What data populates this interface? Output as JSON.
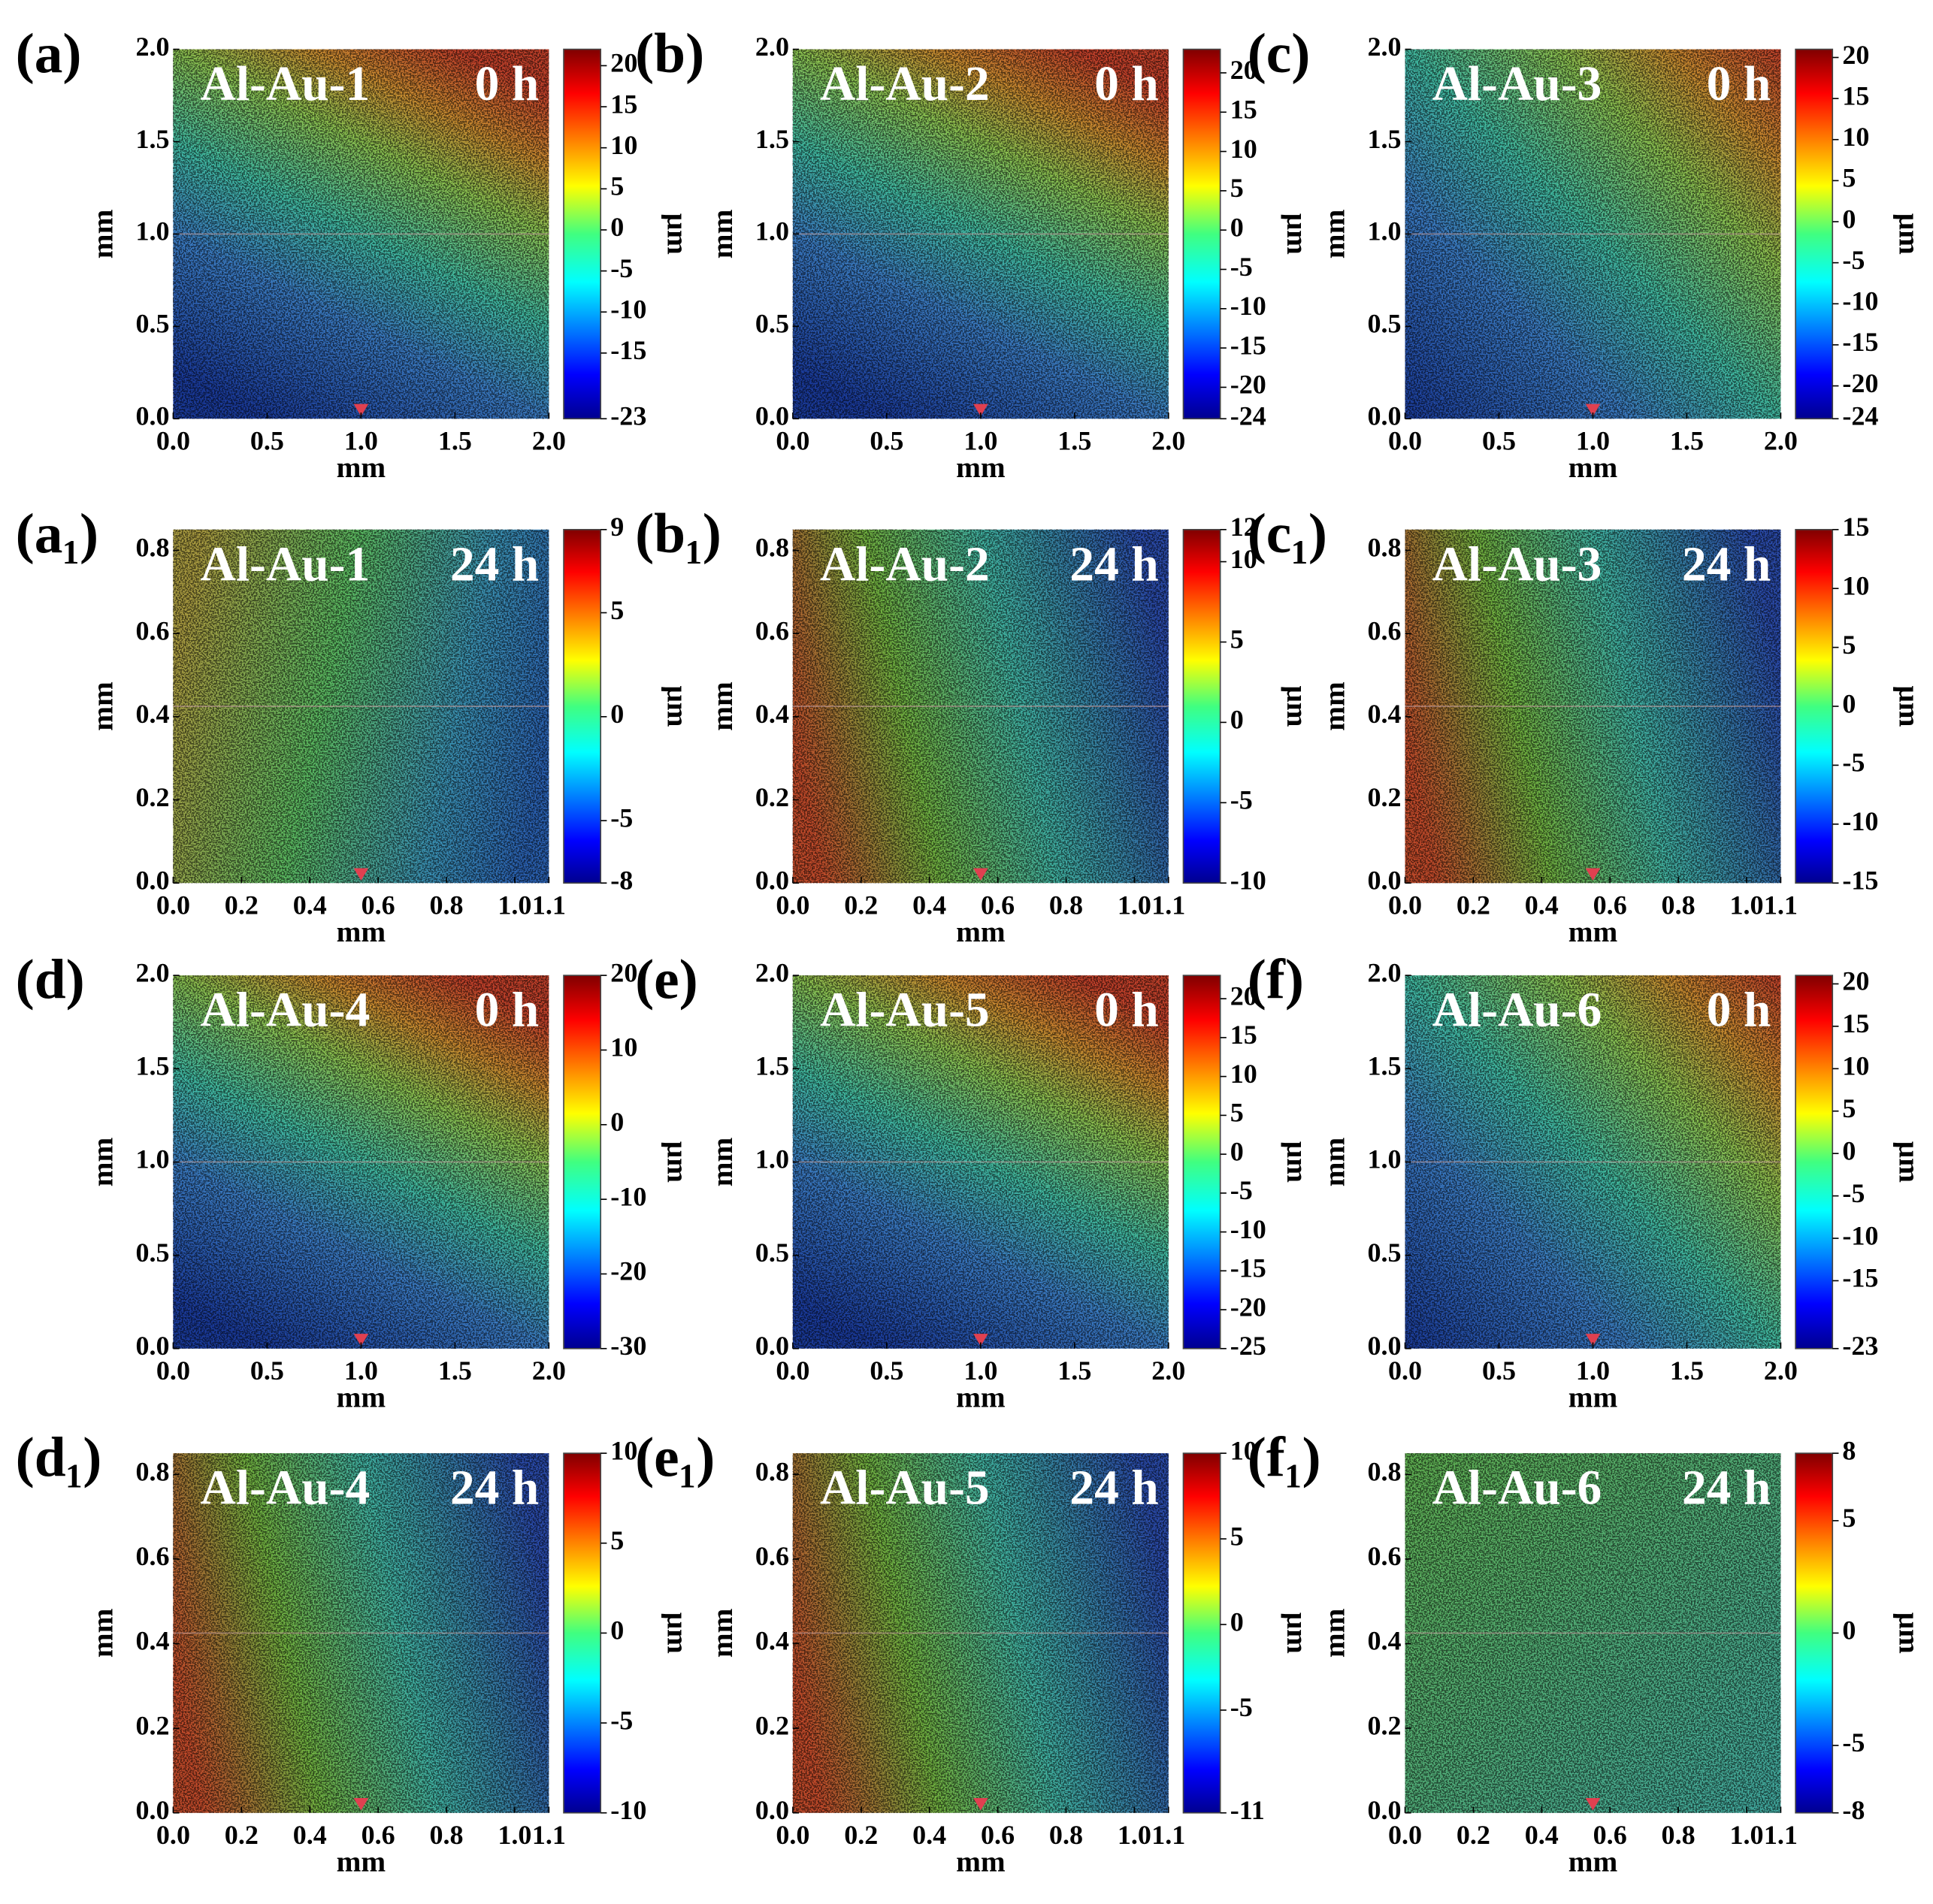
{
  "chart_data": [
    {
      "type": "heatmap",
      "panel_label": "(a)",
      "title": "Al-Au-1",
      "time": "0 h",
      "xlabel": "mm",
      "ylabel": "mm",
      "colorbar_label": "μm",
      "xlim": [
        0,
        2
      ],
      "ylim": [
        0,
        2
      ],
      "xticks": [
        {
          "value": 0,
          "label": "0.0"
        },
        {
          "value": 0.5,
          "label": "0.5"
        },
        {
          "value": 1,
          "label": "1.0"
        },
        {
          "value": 1.5,
          "label": "1.5"
        },
        {
          "value": 2,
          "label": "2.0"
        }
      ],
      "yticks": [
        {
          "value": 0,
          "label": "0.0"
        },
        {
          "value": 0.5,
          "label": "0.5"
        },
        {
          "value": 1,
          "label": "1.0"
        },
        {
          "value": 1.5,
          "label": "1.5"
        },
        {
          "value": 2,
          "label": "2.0"
        }
      ],
      "clim": [
        -23,
        22
      ],
      "cticks": [
        20,
        15,
        10,
        5,
        0,
        -5,
        -10,
        -15,
        -23
      ]
    },
    {
      "type": "heatmap",
      "panel_label": "(b)",
      "title": "Al-Au-2",
      "time": "0 h",
      "xlabel": "mm",
      "ylabel": "mm",
      "colorbar_label": "μm",
      "xlim": [
        0,
        2
      ],
      "ylim": [
        0,
        2
      ],
      "xticks": [
        {
          "value": 0,
          "label": "0.0"
        },
        {
          "value": 0.5,
          "label": "0.5"
        },
        {
          "value": 1,
          "label": "1.0"
        },
        {
          "value": 1.5,
          "label": "1.5"
        },
        {
          "value": 2,
          "label": "2.0"
        }
      ],
      "yticks": [
        {
          "value": 0,
          "label": "0.0"
        },
        {
          "value": 0.5,
          "label": "0.5"
        },
        {
          "value": 1,
          "label": "1.0"
        },
        {
          "value": 1.5,
          "label": "1.5"
        },
        {
          "value": 2,
          "label": "2.0"
        }
      ],
      "clim": [
        -24,
        23
      ],
      "cticks": [
        20,
        15,
        10,
        5,
        0,
        -5,
        -10,
        -15,
        -20,
        -24
      ]
    },
    {
      "type": "heatmap",
      "panel_label": "(c)",
      "title": "Al-Au-3",
      "time": "0 h",
      "xlabel": "mm",
      "ylabel": "mm",
      "colorbar_label": "μm",
      "xlim": [
        0,
        2
      ],
      "ylim": [
        0,
        2
      ],
      "xticks": [
        {
          "value": 0,
          "label": "0.0"
        },
        {
          "value": 0.5,
          "label": "0.5"
        },
        {
          "value": 1,
          "label": "1.0"
        },
        {
          "value": 1.5,
          "label": "1.5"
        },
        {
          "value": 2,
          "label": "2.0"
        }
      ],
      "yticks": [
        {
          "value": 0,
          "label": "0.0"
        },
        {
          "value": 0.5,
          "label": "0.5"
        },
        {
          "value": 1,
          "label": "1.0"
        },
        {
          "value": 1.5,
          "label": "1.5"
        },
        {
          "value": 2,
          "label": "2.0"
        }
      ],
      "clim": [
        -24,
        21
      ],
      "cticks": [
        20,
        15,
        10,
        5,
        0,
        -5,
        -10,
        -15,
        -20,
        -24
      ]
    },
    {
      "type": "heatmap",
      "panel_label": "(a₁)",
      "title": "Al-Au-1",
      "time": "24 h",
      "xlabel": "mm",
      "ylabel": "mm",
      "colorbar_label": "μm",
      "xlim": [
        0,
        1.1
      ],
      "ylim": [
        0,
        0.85
      ],
      "xticks": [
        {
          "value": 0,
          "label": "0.0"
        },
        {
          "value": 0.2,
          "label": "0.2"
        },
        {
          "value": 0.4,
          "label": "0.4"
        },
        {
          "value": 0.6,
          "label": "0.6"
        },
        {
          "value": 0.8,
          "label": "0.8"
        },
        {
          "value": 1,
          "label": "1.0"
        },
        {
          "value": 1.1,
          "label": "1.1"
        }
      ],
      "yticks": [
        {
          "value": 0,
          "label": "0.0"
        },
        {
          "value": 0.2,
          "label": "0.2"
        },
        {
          "value": 0.4,
          "label": "0.4"
        },
        {
          "value": 0.6,
          "label": "0.6"
        },
        {
          "value": 0.8,
          "label": "0.8"
        }
      ],
      "clim": [
        -8,
        9
      ],
      "cticks": [
        9,
        5,
        0,
        -5,
        -8
      ]
    },
    {
      "type": "heatmap",
      "panel_label": "(b₁)",
      "title": "Al-Au-2",
      "time": "24 h",
      "xlabel": "mm",
      "ylabel": "mm",
      "colorbar_label": "μm",
      "xlim": [
        0,
        1.1
      ],
      "ylim": [
        0,
        0.85
      ],
      "xticks": [
        {
          "value": 0,
          "label": "0.0"
        },
        {
          "value": 0.2,
          "label": "0.2"
        },
        {
          "value": 0.4,
          "label": "0.4"
        },
        {
          "value": 0.6,
          "label": "0.6"
        },
        {
          "value": 0.8,
          "label": "0.8"
        },
        {
          "value": 1,
          "label": "1.0"
        },
        {
          "value": 1.1,
          "label": "1.1"
        }
      ],
      "yticks": [
        {
          "value": 0,
          "label": "0.0"
        },
        {
          "value": 0.2,
          "label": "0.2"
        },
        {
          "value": 0.4,
          "label": "0.4"
        },
        {
          "value": 0.6,
          "label": "0.6"
        },
        {
          "value": 0.8,
          "label": "0.8"
        }
      ],
      "clim": [
        -10,
        12
      ],
      "cticks": [
        12,
        10,
        5,
        0,
        -5,
        -10
      ]
    },
    {
      "type": "heatmap",
      "panel_label": "(c₁)",
      "title": "Al-Au-3",
      "time": "24 h",
      "xlabel": "mm",
      "ylabel": "mm",
      "colorbar_label": "μm",
      "xlim": [
        0,
        1.1
      ],
      "ylim": [
        0,
        0.85
      ],
      "xticks": [
        {
          "value": 0,
          "label": "0.0"
        },
        {
          "value": 0.2,
          "label": "0.2"
        },
        {
          "value": 0.4,
          "label": "0.4"
        },
        {
          "value": 0.6,
          "label": "0.6"
        },
        {
          "value": 0.8,
          "label": "0.8"
        },
        {
          "value": 1,
          "label": "1.0"
        },
        {
          "value": 1.1,
          "label": "1.1"
        }
      ],
      "yticks": [
        {
          "value": 0,
          "label": "0.0"
        },
        {
          "value": 0.2,
          "label": "0.2"
        },
        {
          "value": 0.4,
          "label": "0.4"
        },
        {
          "value": 0.6,
          "label": "0.6"
        },
        {
          "value": 0.8,
          "label": "0.8"
        }
      ],
      "clim": [
        -15,
        15
      ],
      "cticks": [
        15,
        10,
        5,
        0,
        -5,
        -10,
        -15
      ]
    },
    {
      "type": "heatmap",
      "panel_label": "(d)",
      "title": "Al-Au-4",
      "time": "0 h",
      "xlabel": "mm",
      "ylabel": "mm",
      "colorbar_label": "μm",
      "xlim": [
        0,
        2
      ],
      "ylim": [
        0,
        2
      ],
      "xticks": [
        {
          "value": 0,
          "label": "0.0"
        },
        {
          "value": 0.5,
          "label": "0.5"
        },
        {
          "value": 1,
          "label": "1.0"
        },
        {
          "value": 1.5,
          "label": "1.5"
        },
        {
          "value": 2,
          "label": "2.0"
        }
      ],
      "yticks": [
        {
          "value": 0,
          "label": "0.0"
        },
        {
          "value": 0.5,
          "label": "0.5"
        },
        {
          "value": 1,
          "label": "1.0"
        },
        {
          "value": 1.5,
          "label": "1.5"
        },
        {
          "value": 2,
          "label": "2.0"
        }
      ],
      "clim": [
        -30,
        20
      ],
      "cticks": [
        20,
        10,
        0,
        -10,
        -20,
        -30
      ]
    },
    {
      "type": "heatmap",
      "panel_label": "(e)",
      "title": "Al-Au-5",
      "time": "0 h",
      "xlabel": "mm",
      "ylabel": "mm",
      "colorbar_label": "μm",
      "xlim": [
        0,
        2
      ],
      "ylim": [
        0,
        2
      ],
      "xticks": [
        {
          "value": 0,
          "label": "0.0"
        },
        {
          "value": 0.5,
          "label": "0.5"
        },
        {
          "value": 1,
          "label": "1.0"
        },
        {
          "value": 1.5,
          "label": "1.5"
        },
        {
          "value": 2,
          "label": "2.0"
        }
      ],
      "yticks": [
        {
          "value": 0,
          "label": "0.0"
        },
        {
          "value": 0.5,
          "label": "0.5"
        },
        {
          "value": 1,
          "label": "1.0"
        },
        {
          "value": 1.5,
          "label": "1.5"
        },
        {
          "value": 2,
          "label": "2.0"
        }
      ],
      "clim": [
        -25,
        23
      ],
      "cticks": [
        20,
        15,
        10,
        5,
        0,
        -5,
        -10,
        -15,
        -20,
        -25
      ]
    },
    {
      "type": "heatmap",
      "panel_label": "(f)",
      "title": "Al-Au-6",
      "time": "0 h",
      "xlabel": "mm",
      "ylabel": "mm",
      "colorbar_label": "μm",
      "xlim": [
        0,
        2
      ],
      "ylim": [
        0,
        2
      ],
      "xticks": [
        {
          "value": 0,
          "label": "0.0"
        },
        {
          "value": 0.5,
          "label": "0.5"
        },
        {
          "value": 1,
          "label": "1.0"
        },
        {
          "value": 1.5,
          "label": "1.5"
        },
        {
          "value": 2,
          "label": "2.0"
        }
      ],
      "yticks": [
        {
          "value": 0,
          "label": "0.0"
        },
        {
          "value": 0.5,
          "label": "0.5"
        },
        {
          "value": 1,
          "label": "1.0"
        },
        {
          "value": 1.5,
          "label": "1.5"
        },
        {
          "value": 2,
          "label": "2.0"
        }
      ],
      "clim": [
        -23,
        21
      ],
      "cticks": [
        20,
        15,
        10,
        5,
        0,
        -5,
        -10,
        -15,
        -23
      ]
    },
    {
      "type": "heatmap",
      "panel_label": "(d₁)",
      "title": "Al-Au-4",
      "time": "24 h",
      "xlabel": "mm",
      "ylabel": "mm",
      "colorbar_label": "μm",
      "xlim": [
        0,
        1.1
      ],
      "ylim": [
        0,
        0.85
      ],
      "xticks": [
        {
          "value": 0,
          "label": "0.0"
        },
        {
          "value": 0.2,
          "label": "0.2"
        },
        {
          "value": 0.4,
          "label": "0.4"
        },
        {
          "value": 0.6,
          "label": "0.6"
        },
        {
          "value": 0.8,
          "label": "0.8"
        },
        {
          "value": 1,
          "label": "1.0"
        },
        {
          "value": 1.1,
          "label": "1.1"
        }
      ],
      "yticks": [
        {
          "value": 0,
          "label": "0.0"
        },
        {
          "value": 0.2,
          "label": "0.2"
        },
        {
          "value": 0.4,
          "label": "0.4"
        },
        {
          "value": 0.6,
          "label": "0.6"
        },
        {
          "value": 0.8,
          "label": "0.8"
        }
      ],
      "clim": [
        -10,
        10
      ],
      "cticks": [
        10,
        5,
        0,
        -5,
        -10
      ]
    },
    {
      "type": "heatmap",
      "panel_label": "(e₁)",
      "title": "Al-Au-5",
      "time": "24 h",
      "xlabel": "mm",
      "ylabel": "mm",
      "colorbar_label": "μm",
      "xlim": [
        0,
        1.1
      ],
      "ylim": [
        0,
        0.85
      ],
      "xticks": [
        {
          "value": 0,
          "label": "0.0"
        },
        {
          "value": 0.2,
          "label": "0.2"
        },
        {
          "value": 0.4,
          "label": "0.4"
        },
        {
          "value": 0.6,
          "label": "0.6"
        },
        {
          "value": 0.8,
          "label": "0.8"
        },
        {
          "value": 1,
          "label": "1.0"
        },
        {
          "value": 1.1,
          "label": "1.1"
        }
      ],
      "yticks": [
        {
          "value": 0,
          "label": "0.0"
        },
        {
          "value": 0.2,
          "label": "0.2"
        },
        {
          "value": 0.4,
          "label": "0.4"
        },
        {
          "value": 0.6,
          "label": "0.6"
        },
        {
          "value": 0.8,
          "label": "0.8"
        }
      ],
      "clim": [
        -11,
        10
      ],
      "cticks": [
        10,
        5,
        0,
        -5,
        -11
      ]
    },
    {
      "type": "heatmap",
      "panel_label": "(f₁)",
      "title": "Al-Au-6",
      "time": "24 h",
      "xlabel": "mm",
      "ylabel": "mm",
      "colorbar_label": "μm",
      "xlim": [
        0,
        1.1
      ],
      "ylim": [
        0,
        0.85
      ],
      "xticks": [
        {
          "value": 0,
          "label": "0.0"
        },
        {
          "value": 0.2,
          "label": "0.2"
        },
        {
          "value": 0.4,
          "label": "0.4"
        },
        {
          "value": 0.6,
          "label": "0.6"
        },
        {
          "value": 0.8,
          "label": "0.8"
        },
        {
          "value": 1,
          "label": "1.0"
        },
        {
          "value": 1.1,
          "label": "1.1"
        }
      ],
      "yticks": [
        {
          "value": 0,
          "label": "0.0"
        },
        {
          "value": 0.2,
          "label": "0.2"
        },
        {
          "value": 0.4,
          "label": "0.4"
        },
        {
          "value": 0.6,
          "label": "0.6"
        },
        {
          "value": 0.8,
          "label": "0.8"
        }
      ],
      "clim": [
        -8,
        8
      ],
      "cticks": [
        8,
        5,
        0,
        -5,
        -8
      ]
    }
  ]
}
